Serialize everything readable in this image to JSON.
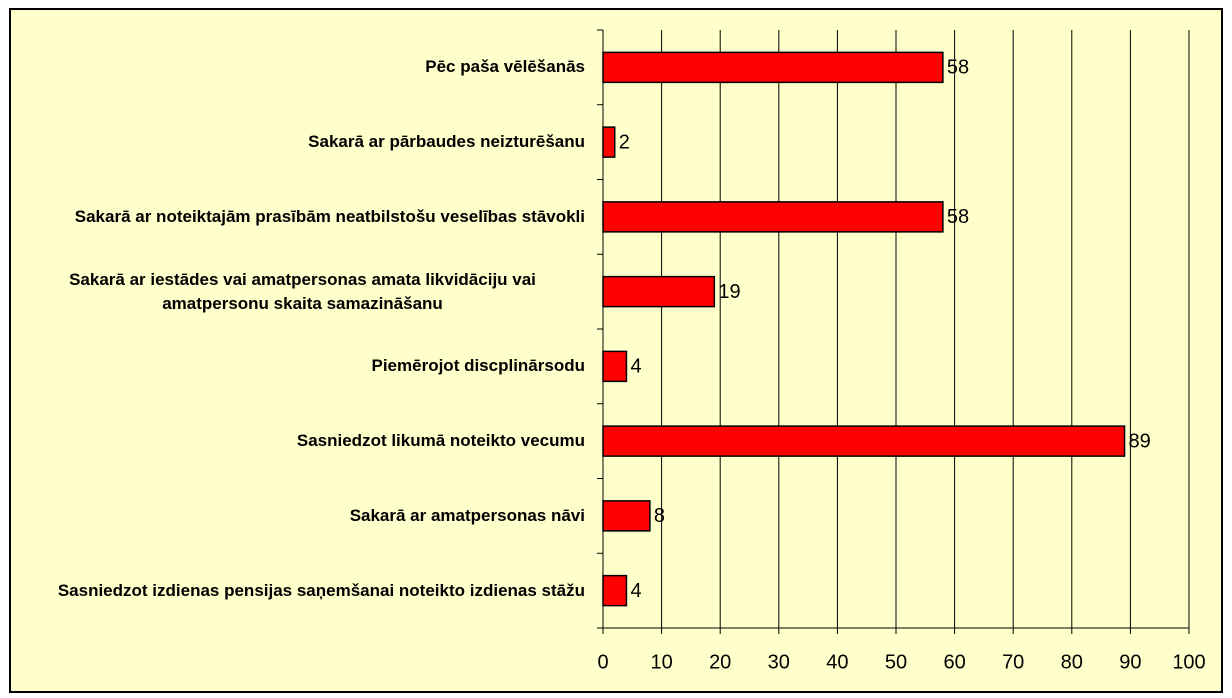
{
  "chart_data": {
    "type": "bar",
    "orientation": "horizontal",
    "categories": [
      "Pēc paša vēlēšanās",
      "Sakarā ar pārbaudes neizturēšanu",
      "Sakarā ar noteiktajām prasībām neatbilstošu veselības stāvokli",
      "Sakarā ar iestādes vai amatpersonas amata likvidāciju vai amatpersonu skaita samazināšanu",
      "Piemērojot discplinārsodu",
      "Sasniedzot likumā noteikto vecumu",
      "Sakarā ar amatpersonas nāvi",
      "Sasniedzot izdienas pensijas saņemšanai noteikto izdienas stāžu"
    ],
    "values": [
      58,
      2,
      58,
      19,
      4,
      89,
      8,
      4
    ],
    "color": "#ff0000",
    "xlim": [
      0,
      100
    ],
    "xticks": [
      0,
      10,
      20,
      30,
      40,
      50,
      60,
      70,
      80,
      90,
      100
    ],
    "grid": true
  }
}
